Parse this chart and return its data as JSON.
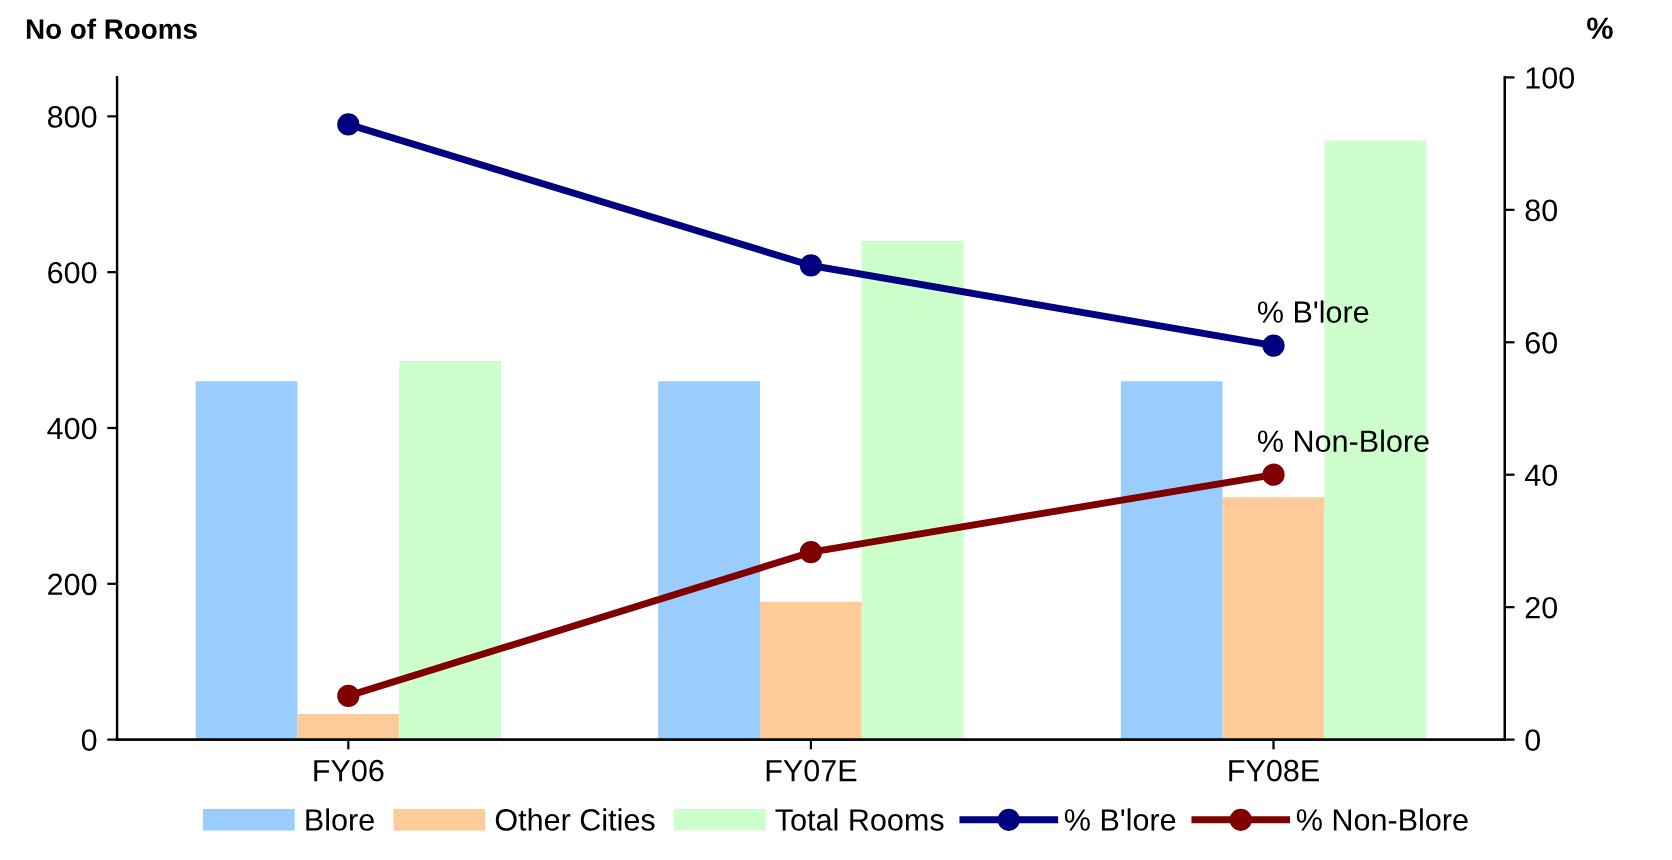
{
  "chart_data": {
    "type": "bar",
    "ylabel": "No of Rooms",
    "y2label": "%",
    "categories": [
      "FY06",
      "FY07E",
      "FY08E"
    ],
    "series": [
      {
        "name": "Blore",
        "color": "#99ccff",
        "values": [
          460,
          460,
          460
        ]
      },
      {
        "name": "Other Cities",
        "color": "#ffcc99",
        "values": [
          33,
          177,
          311
        ]
      },
      {
        "name": "Total Rooms",
        "color": "#ccffcc",
        "values": [
          486,
          640,
          769
        ]
      },
      {
        "name": "% B'lore",
        "type": "line",
        "axis": "y2",
        "color": "#000080",
        "values": [
          92.9,
          71.6,
          59.5
        ]
      },
      {
        "name": "% Non-Blore",
        "type": "line",
        "axis": "y2",
        "color": "#800000",
        "values": [
          6.6,
          28.3,
          40
        ]
      }
    ],
    "ylim": [
      0,
      850
    ],
    "yticks": [
      0,
      200,
      400,
      600,
      800
    ],
    "y2lim": [
      0,
      100
    ],
    "y2ticks": [
      0,
      20,
      40,
      60,
      80,
      100
    ],
    "marker": "circle",
    "line_style": "solid",
    "grid": false,
    "legend": "bottom",
    "annotations": [
      "% B'lore",
      "% Non-Blore"
    ]
  }
}
